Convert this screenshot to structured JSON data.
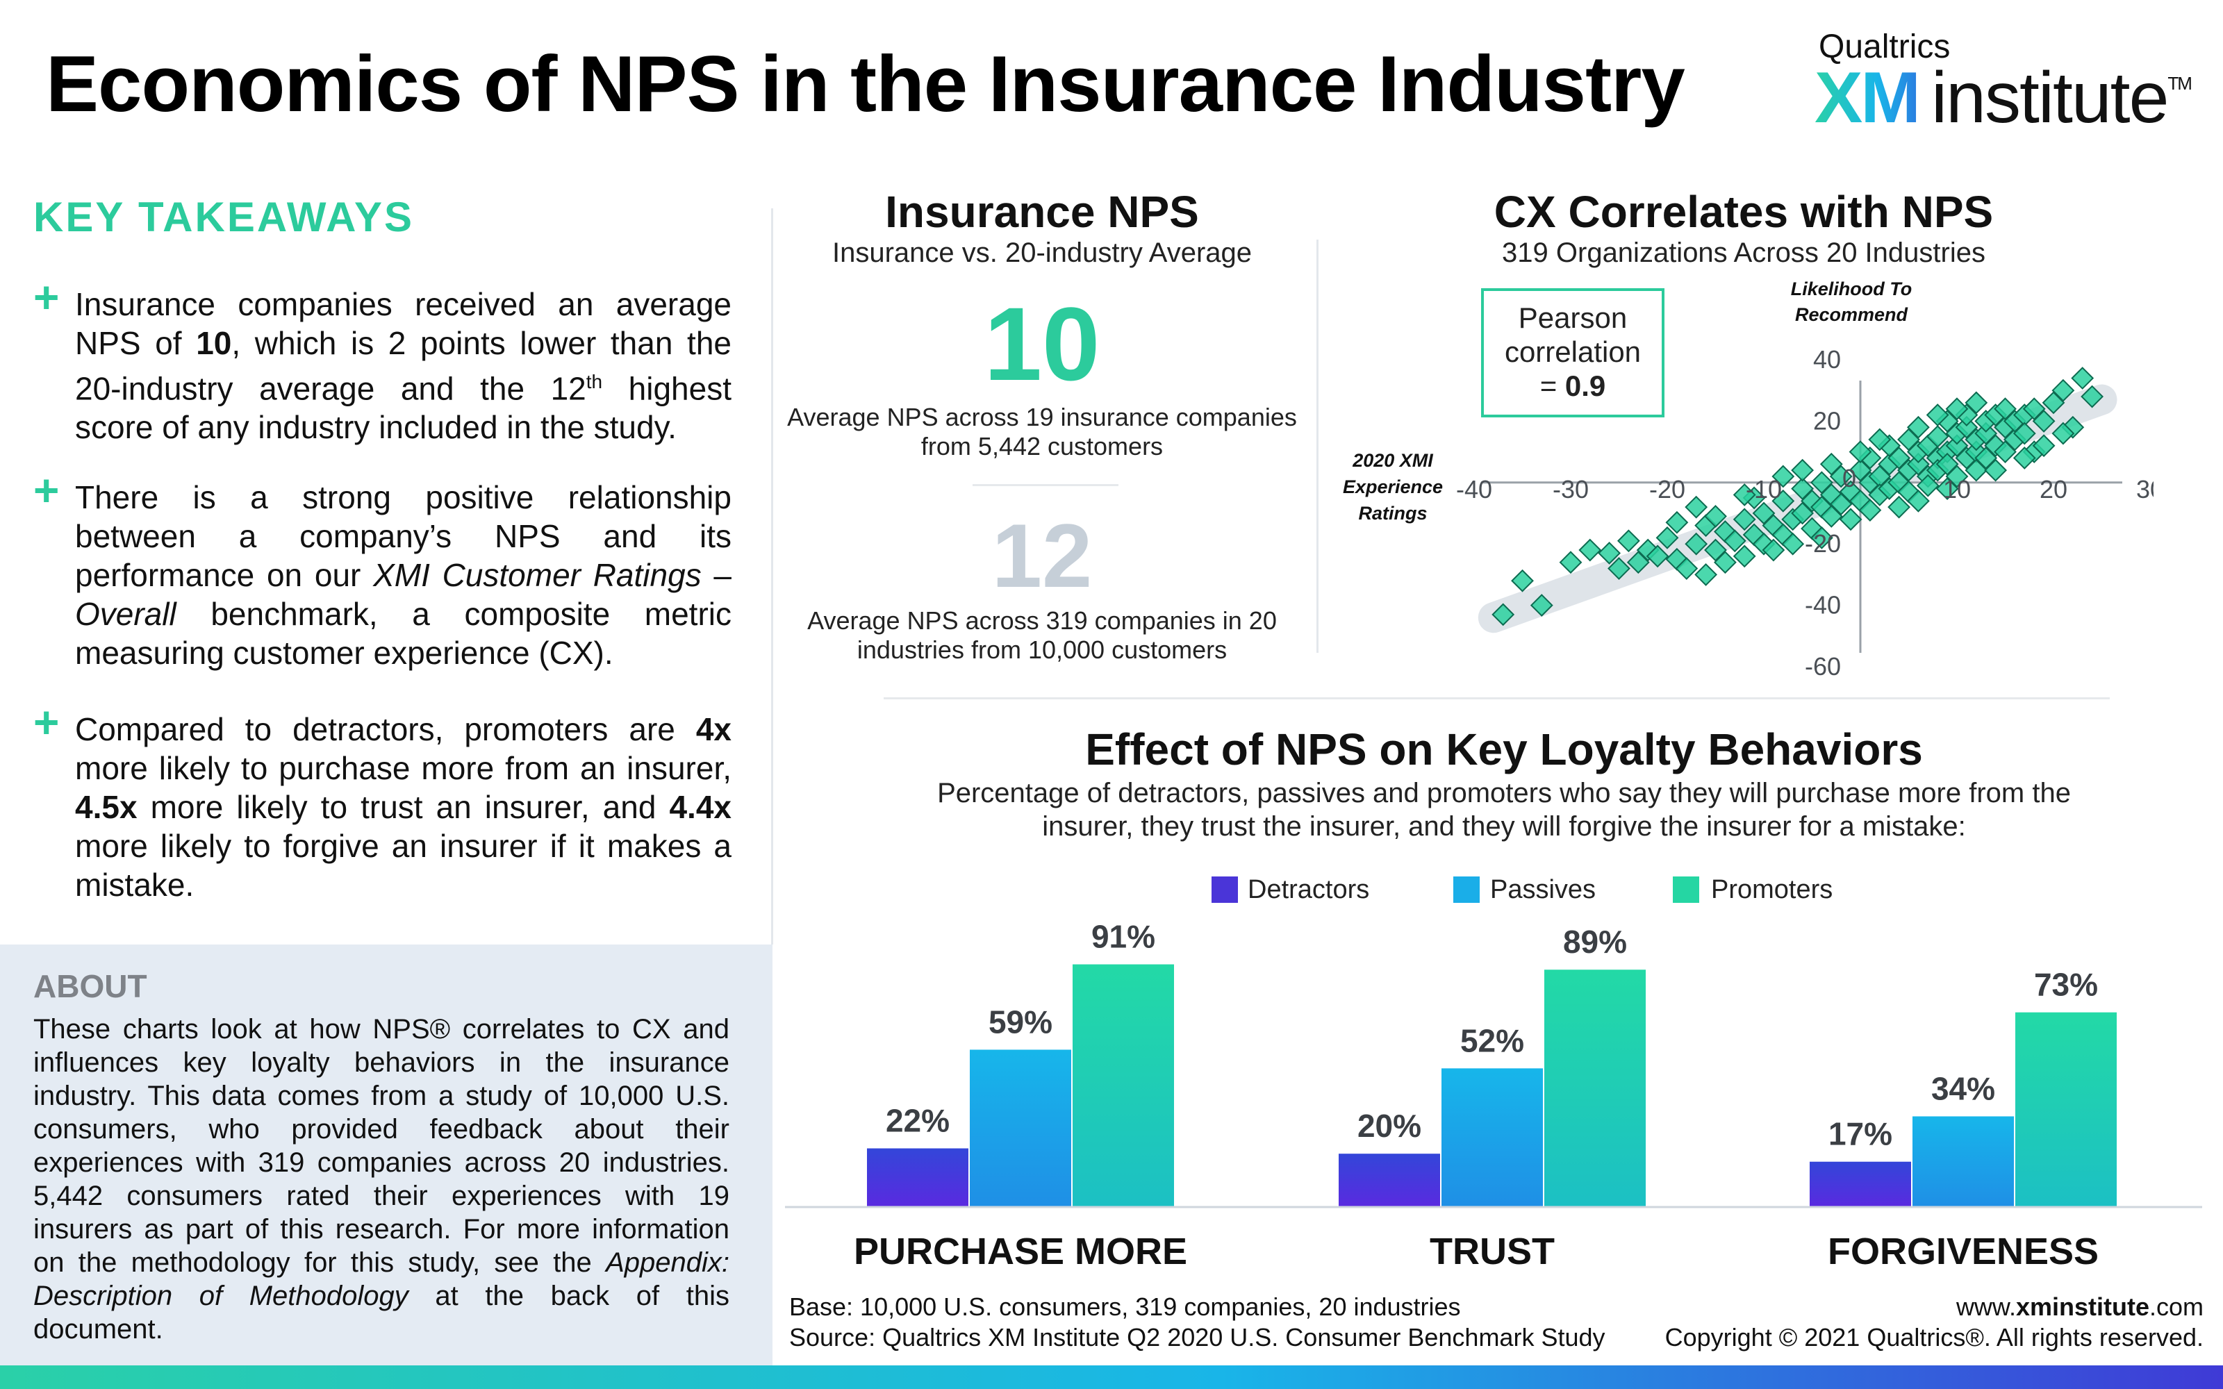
{
  "header": {
    "title": "Economics of NPS in the Insurance Industry",
    "brand_top": "Qualtrics",
    "brand_xm": "XM",
    "brand_institute": "institute",
    "brand_tm": "TM"
  },
  "key_takeaways": {
    "heading": "KEY TAKEAWAYS",
    "item1": {
      "a": "Insurance companies received an average NPS of ",
      "b": "10",
      "c": ", which is 2 points lower than the 20-industry average and the 12",
      "sup": "th",
      "d": " highest score of any industry included in the study."
    },
    "item2": {
      "a": "There is a strong positive relationship between a company’s NPS and its performance on our ",
      "i1": "XMI Customer Ratings",
      "b": " – ",
      "i2": "Overall",
      "c": " benchmark, a composite metric measuring customer experience (CX)."
    },
    "item3": {
      "a": "Compared to detractors, promoters are ",
      "b1": "4x",
      "c": " more likely to purchase more from an insurer, ",
      "b2": "4.5x",
      "d": " more likely to trust an insurer, and ",
      "b3": "4.4x",
      "e": " more likely to forgive an insurer if it makes a mistake."
    }
  },
  "about": {
    "heading": "ABOUT",
    "text_a": "These charts look at how NPS® correlates to CX and influences key loyalty behaviors in the insurance industry. This data comes from a study of 10,000 U.S. consumers, who provided feedback about their experiences with 319 companies across 20 industries. 5,442 consumers rated their experiences with 19 insurers as part of this research. For more information on the methodology for this study, see the ",
    "text_italic": "Appendix: Description of Methodology",
    "text_b": " at the back of this document."
  },
  "insurance_nps": {
    "title": "Insurance NPS",
    "subtitle": "Insurance vs. 20-industry Average",
    "insurance_value": "10",
    "insurance_desc": "Average NPS across 19 insurance companies from 5,442 customers",
    "average_value": "12",
    "average_desc": "Average NPS across 319 companies in 20 industries from 10,000 customers"
  },
  "cx_correlation": {
    "title": "CX Correlates with NPS",
    "subtitle": "319 Organizations Across 20 Industries",
    "pearson_line1": "Pearson",
    "pearson_line2": "correlation",
    "pearson_prefix": "= ",
    "pearson_value": "0.9"
  },
  "loyalty": {
    "title": "Effect of NPS on Key Loyalty Behaviors",
    "subtitle": "Percentage of detractors, passives and promoters who say they will purchase more from the insurer, they trust the insurer, and they will forgive the insurer for a mistake:"
  },
  "footer": {
    "base": "Base: 10,000 U.S. consumers, 319 companies, 20 industries",
    "source": "Source: Qualtrics XM Institute Q2 2020 U.S. Consumer Benchmark Study",
    "site_prefix": "www.",
    "site_bold": "xminstitute",
    "site_suffix": ".com",
    "copyright": "Copyright © 2021 Qualtrics®. All rights reserved."
  },
  "colors": {
    "accent": "#2ccb9c",
    "detractors": "#4a35d8",
    "passives": "#1aaee8",
    "promoters": "#25d6a3",
    "muted": "#c6cfd8"
  },
  "chart_data": [
    {
      "type": "scatter",
      "title": "CX Correlates with NPS",
      "xlabel": "2020 XMI Experience Ratings",
      "ylabel": "Likelihood To Recommend",
      "xlim": [
        -40,
        30
      ],
      "ylim": [
        -60,
        40
      ],
      "xticks": [
        -40,
        -30,
        -20,
        -10,
        0,
        10,
        20,
        30
      ],
      "yticks": [
        40,
        20,
        0,
        -20,
        -40,
        -60
      ],
      "tick_label_zero": "0",
      "grid": false,
      "trend_band": {
        "from": [
          -38,
          -44
        ],
        "to": [
          25,
          27
        ]
      },
      "points": [
        [
          -37,
          -43
        ],
        [
          -35,
          -32
        ],
        [
          -33,
          -40
        ],
        [
          -26,
          -23
        ],
        [
          -24,
          -19
        ],
        [
          -23,
          -26
        ],
        [
          -22,
          -22
        ],
        [
          -21,
          -24
        ],
        [
          -20,
          -18
        ],
        [
          -19,
          -25
        ],
        [
          -18,
          -28
        ],
        [
          -17,
          -20
        ],
        [
          -16,
          -14
        ],
        [
          -16,
          -30
        ],
        [
          -15,
          -22
        ],
        [
          -14,
          -26
        ],
        [
          -14,
          -16
        ],
        [
          -13,
          -19
        ],
        [
          -12,
          -24
        ],
        [
          -12,
          -12
        ],
        [
          -11,
          -17
        ],
        [
          -10,
          -20
        ],
        [
          -10,
          -10
        ],
        [
          -9,
          -14
        ],
        [
          -9,
          -22
        ],
        [
          -8,
          -6
        ],
        [
          -8,
          -17
        ],
        [
          -7,
          -12
        ],
        [
          -7,
          -20
        ],
        [
          -6,
          -2
        ],
        [
          -6,
          -10
        ],
        [
          -5,
          -15
        ],
        [
          -5,
          -6
        ],
        [
          -4,
          -8
        ],
        [
          -4,
          0
        ],
        [
          -4,
          -18
        ],
        [
          -3,
          -4
        ],
        [
          -3,
          -11
        ],
        [
          -2,
          -7
        ],
        [
          -2,
          2
        ],
        [
          -1,
          -3
        ],
        [
          -1,
          -12
        ],
        [
          0,
          4
        ],
        [
          0,
          -6
        ],
        [
          1,
          0
        ],
        [
          1,
          -9
        ],
        [
          1,
          8
        ],
        [
          2,
          2
        ],
        [
          2,
          -4
        ],
        [
          3,
          6
        ],
        [
          3,
          -2
        ],
        [
          3,
          12
        ],
        [
          4,
          0
        ],
        [
          4,
          8
        ],
        [
          4,
          -8
        ],
        [
          5,
          4
        ],
        [
          5,
          14
        ],
        [
          5,
          -3
        ],
        [
          6,
          6
        ],
        [
          6,
          10
        ],
        [
          6,
          18
        ],
        [
          7,
          2
        ],
        [
          7,
          12
        ],
        [
          7,
          -1
        ],
        [
          8,
          8
        ],
        [
          8,
          15
        ],
        [
          8,
          4
        ],
        [
          9,
          10
        ],
        [
          9,
          20
        ],
        [
          9,
          6
        ],
        [
          10,
          12
        ],
        [
          10,
          2
        ],
        [
          10,
          16
        ],
        [
          11,
          8
        ],
        [
          11,
          18
        ],
        [
          11,
          22
        ],
        [
          12,
          10
        ],
        [
          12,
          14
        ],
        [
          12,
          4
        ],
        [
          13,
          16
        ],
        [
          13,
          20
        ],
        [
          13,
          8
        ],
        [
          14,
          12
        ],
        [
          14,
          22
        ],
        [
          15,
          18
        ],
        [
          15,
          10
        ],
        [
          15,
          24
        ],
        [
          16,
          14
        ],
        [
          16,
          20
        ],
        [
          17,
          22
        ],
        [
          17,
          16
        ],
        [
          18,
          24
        ],
        [
          18,
          10
        ],
        [
          19,
          20
        ],
        [
          20,
          26
        ],
        [
          21,
          30
        ],
        [
          22,
          18
        ],
        [
          23,
          34
        ],
        [
          24,
          28
        ],
        [
          -28,
          -22
        ],
        [
          -30,
          -26
        ],
        [
          -25,
          -28
        ],
        [
          -19,
          -13
        ],
        [
          -17,
          -8
        ],
        [
          -15,
          -11
        ],
        [
          -11,
          -5
        ],
        [
          -3,
          6
        ],
        [
          2,
          14
        ],
        [
          0,
          10
        ],
        [
          -6,
          4
        ],
        [
          -8,
          2
        ],
        [
          -12,
          -4
        ],
        [
          6,
          -6
        ],
        [
          9,
          -2
        ],
        [
          14,
          4
        ],
        [
          17,
          8
        ],
        [
          19,
          12
        ],
        [
          21,
          16
        ],
        [
          10,
          24
        ],
        [
          8,
          22
        ],
        [
          12,
          26
        ]
      ]
    },
    {
      "type": "bar",
      "title": "Effect of NPS on Key Loyalty Behaviors",
      "categories": [
        "PURCHASE MORE",
        "TRUST",
        "FORGIVENESS"
      ],
      "series": [
        {
          "name": "Detractors",
          "values": [
            22,
            20,
            17
          ],
          "labels": [
            "22%",
            "20%",
            "17%"
          ]
        },
        {
          "name": "Passives",
          "values": [
            59,
            52,
            34
          ],
          "labels": [
            "59%",
            "52%",
            "34%"
          ]
        },
        {
          "name": "Promoters",
          "values": [
            91,
            89,
            73
          ],
          "labels": [
            "91%",
            "89%",
            "73%"
          ]
        }
      ],
      "ylim": [
        0,
        100
      ],
      "legend": "top-center",
      "grid": false
    }
  ]
}
